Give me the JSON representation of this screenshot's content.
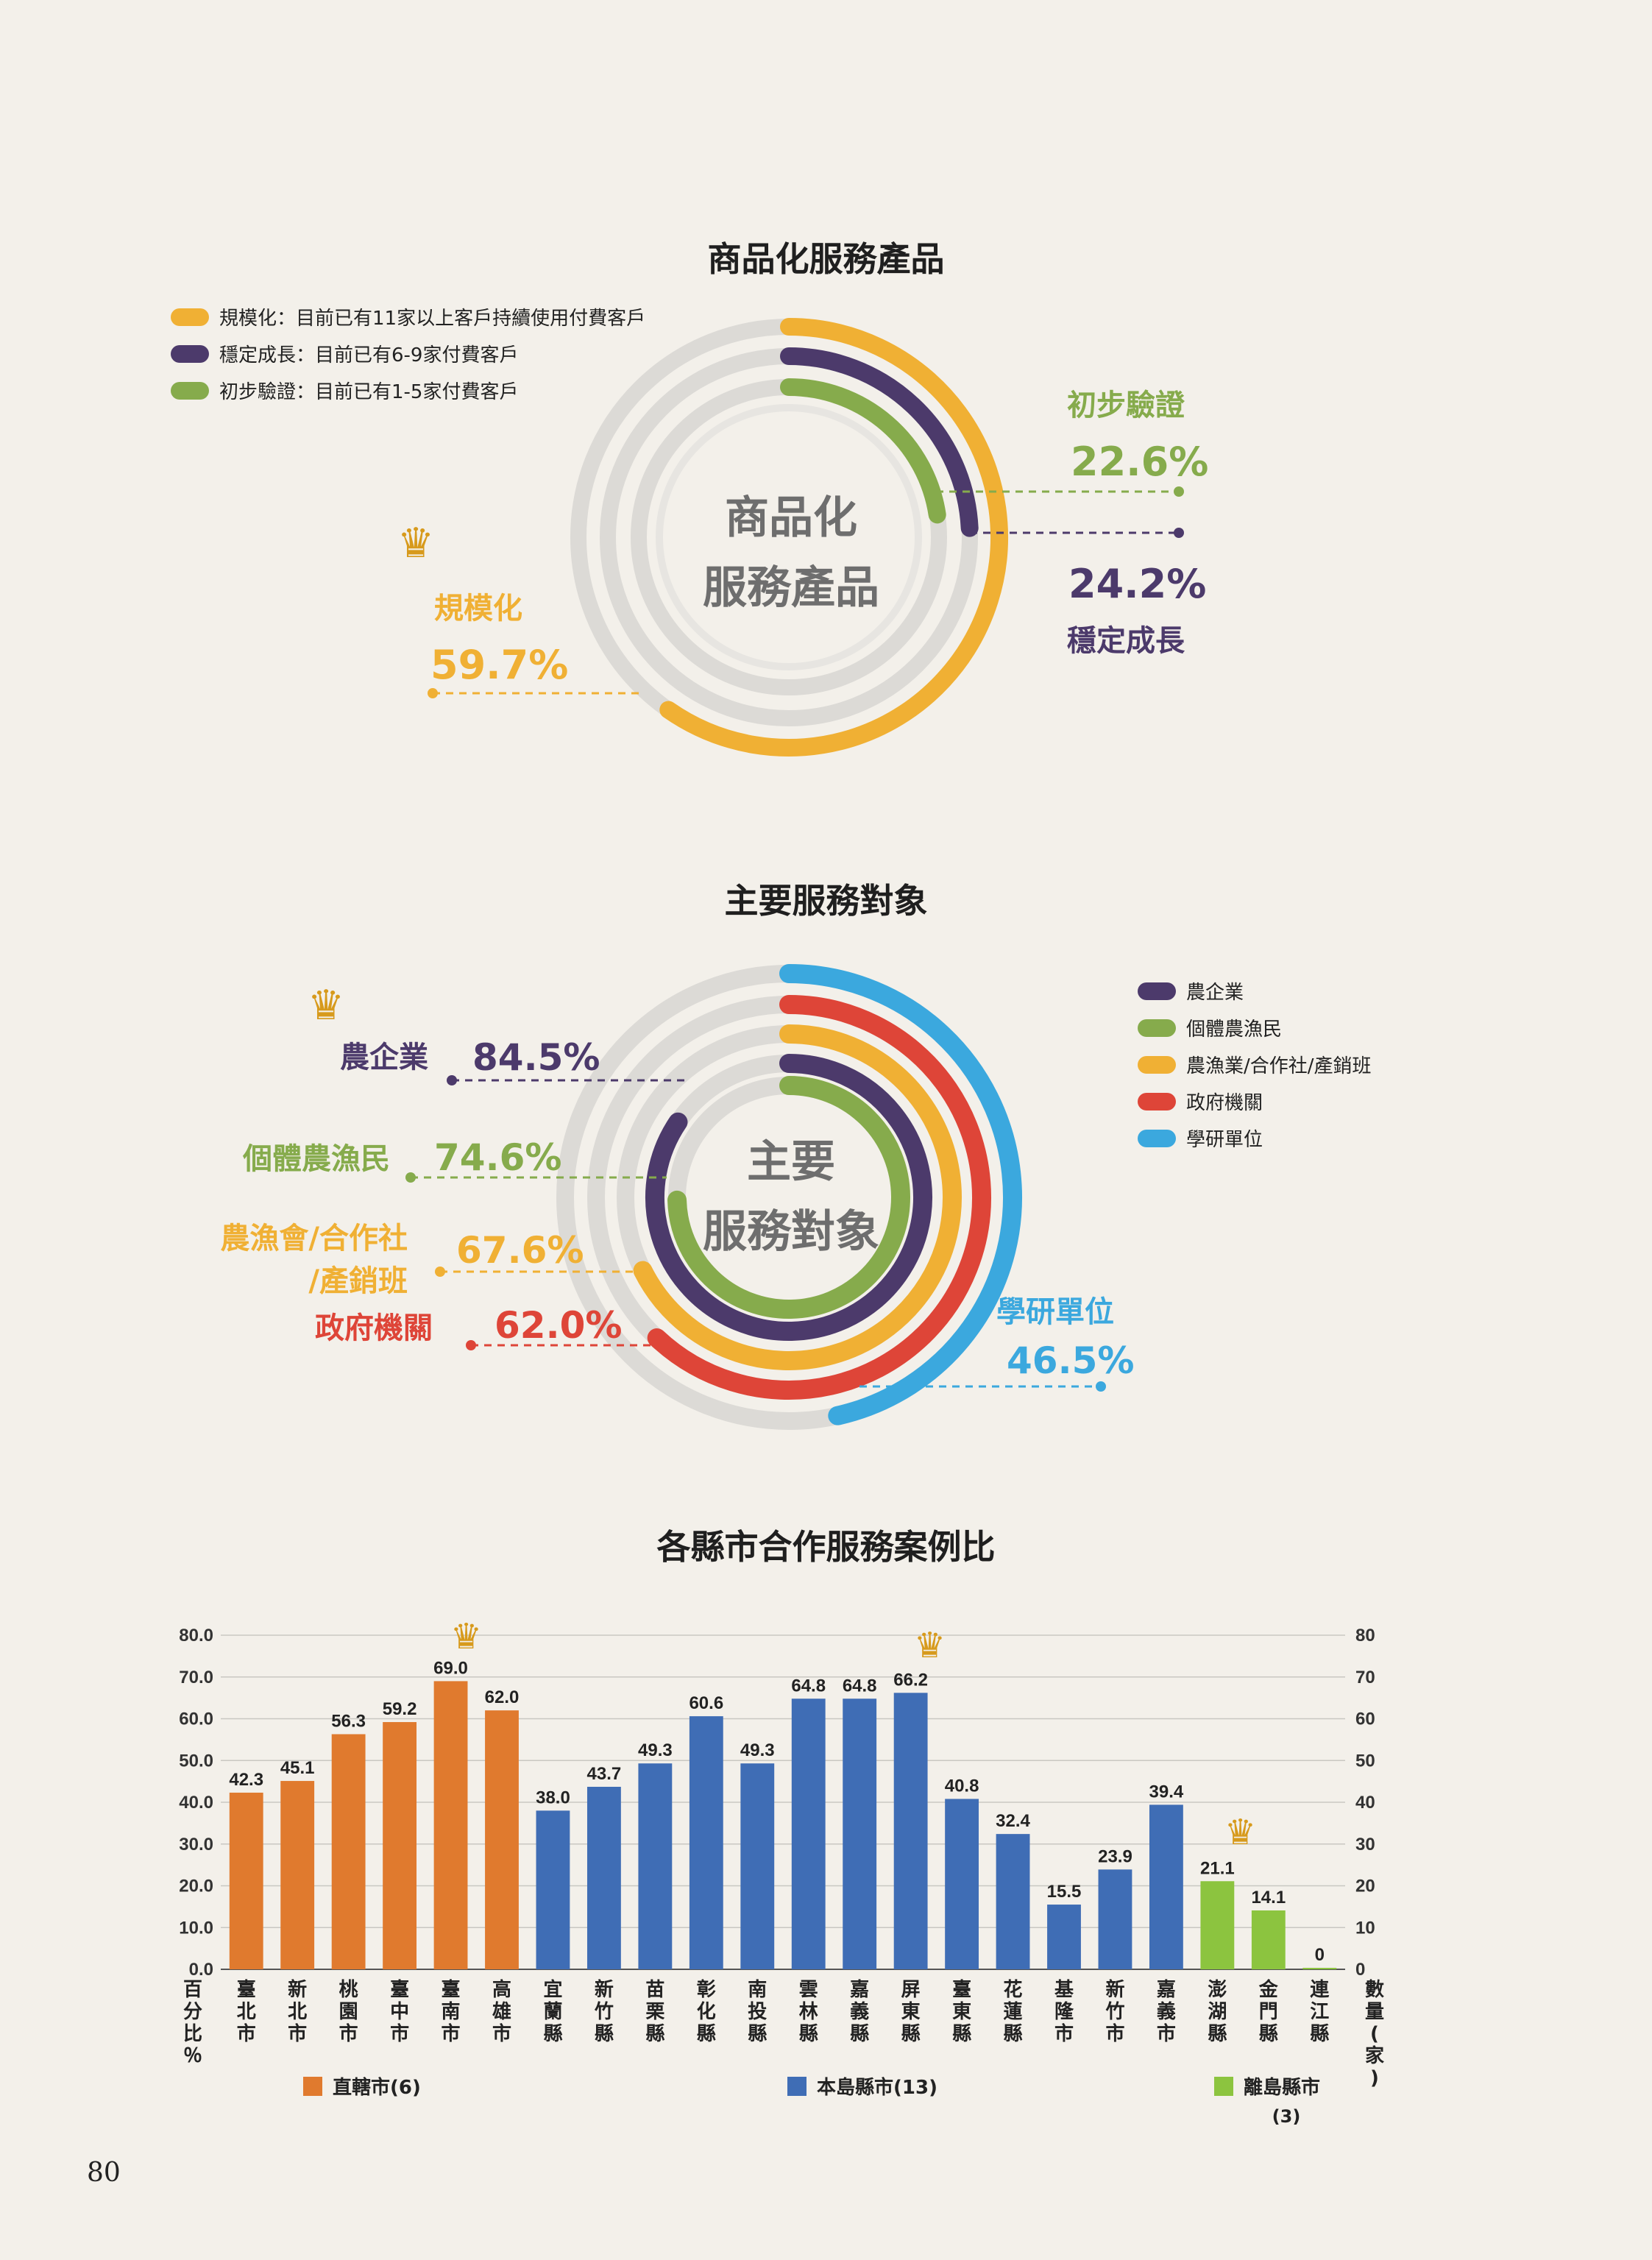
{
  "page_number": "80",
  "charts": {
    "product": {
      "title": "商品化服務產品",
      "center_label_line1": "商品化",
      "center_label_line2": "服務產品",
      "legend": [
        {
          "label": "規模化：目前已有11家以上客戶持續使用付費客戶",
          "color": "#f0b034"
        },
        {
          "label": "穩定成長：目前已有6-9家付費客戶",
          "color": "#4c3a6b"
        },
        {
          "label": "初步驗證：目前已有1-5家付費客戶",
          "color": "#86ab4c"
        }
      ],
      "callouts": {
        "scale_name": "規模化",
        "scale_value": "59.7%",
        "stable_name": "穩定成長",
        "stable_value": "24.2%",
        "initial_name": "初步驗證",
        "initial_value": "22.6%"
      }
    },
    "targets": {
      "title": "主要服務對象",
      "center_label_line1": "主要",
      "center_label_line2": "服務對象",
      "legend": [
        {
          "label": "農企業",
          "color": "#4c3a6b"
        },
        {
          "label": "個體農漁民",
          "color": "#86ab4c"
        },
        {
          "label": "農漁業/合作社/產銷班",
          "color": "#f0b034"
        },
        {
          "label": "政府機關",
          "color": "#de4538"
        },
        {
          "label": "學研單位",
          "color": "#3ba8de"
        }
      ],
      "callouts": {
        "agri_name": "農企業",
        "agri_value": "84.5%",
        "farmer_name": "個體農漁民",
        "farmer_value": "74.6%",
        "coop_name_1": "農漁會/合作社",
        "coop_name_2": "/產銷班",
        "coop_value": "67.6%",
        "gov_name": "政府機關",
        "gov_value": "62.0%",
        "academic_name": "學研單位",
        "academic_value": "46.5%"
      }
    },
    "counties": {
      "title": "各縣市合作服務案例比",
      "left_axis_label": "百分比％",
      "right_axis_label": "數量(家)",
      "left_ticks": [
        "0.0",
        "10.0",
        "20.0",
        "30.0",
        "40.0",
        "50.0",
        "60.0",
        "70.0",
        "80.0"
      ],
      "right_ticks": [
        "0",
        "10",
        "20",
        "30",
        "40",
        "50",
        "60",
        "70",
        "80"
      ],
      "group_legend": {
        "municipal": "直轄市(6)",
        "main_island": "本島縣市(13)",
        "outlying_1": "離島縣市",
        "outlying_2": "(3)"
      }
    }
  },
  "chart_data": [
    {
      "type": "pie",
      "title": "商品化服務產品",
      "series": [
        {
          "name": "規模化",
          "value": 59.7,
          "color": "#f0b034"
        },
        {
          "name": "穩定成長",
          "value": 24.2,
          "color": "#4c3a6b"
        },
        {
          "name": "初步驗證",
          "value": 22.6,
          "color": "#86ab4c"
        }
      ]
    },
    {
      "type": "pie",
      "title": "主要服務對象",
      "series": [
        {
          "name": "農企業",
          "value": 84.5,
          "color": "#4c3a6b"
        },
        {
          "name": "個體農漁民",
          "value": 74.6,
          "color": "#86ab4c"
        },
        {
          "name": "農漁會/合作社/產銷班",
          "value": 67.6,
          "color": "#f0b034"
        },
        {
          "name": "政府機關",
          "value": 62.0,
          "color": "#de4538"
        },
        {
          "name": "學研單位",
          "value": 46.5,
          "color": "#3ba8de"
        }
      ]
    },
    {
      "type": "bar",
      "title": "各縣市合作服務案例比",
      "ylim": [
        0,
        80
      ],
      "categories": [
        "臺北市",
        "新北市",
        "桃園市",
        "臺中市",
        "臺南市",
        "高雄市",
        "宜蘭縣",
        "新竹縣",
        "苗栗縣",
        "彰化縣",
        "南投縣",
        "雲林縣",
        "嘉義縣",
        "屏東縣",
        "臺東縣",
        "花蓮縣",
        "基隆市",
        "新竹市",
        "嘉義市",
        "澎湖縣",
        "金門縣",
        "連江縣"
      ],
      "values": [
        42.3,
        45.1,
        56.3,
        59.2,
        69.0,
        62.0,
        38.0,
        43.7,
        49.3,
        60.6,
        49.3,
        64.8,
        64.8,
        66.2,
        40.8,
        32.4,
        15.5,
        23.9,
        39.4,
        21.1,
        14.1,
        0
      ],
      "value_labels": [
        "42.3",
        "45.1",
        "56.3",
        "59.2",
        "69.0",
        "62.0",
        "38.0",
        "43.7",
        "49.3",
        "60.6",
        "49.3",
        "64.8",
        "64.8",
        "66.2",
        "40.8",
        "32.4",
        "15.5",
        "23.9",
        "39.4",
        "21.1",
        "14.1",
        "0"
      ],
      "groups": [
        "municipal",
        "municipal",
        "municipal",
        "municipal",
        "municipal",
        "municipal",
        "main",
        "main",
        "main",
        "main",
        "main",
        "main",
        "main",
        "main",
        "main",
        "main",
        "main",
        "main",
        "main",
        "outlying",
        "outlying",
        "outlying"
      ],
      "group_colors": {
        "municipal": "#e07a2e",
        "main": "#3f6db5",
        "outlying": "#8cc43f"
      }
    }
  ]
}
